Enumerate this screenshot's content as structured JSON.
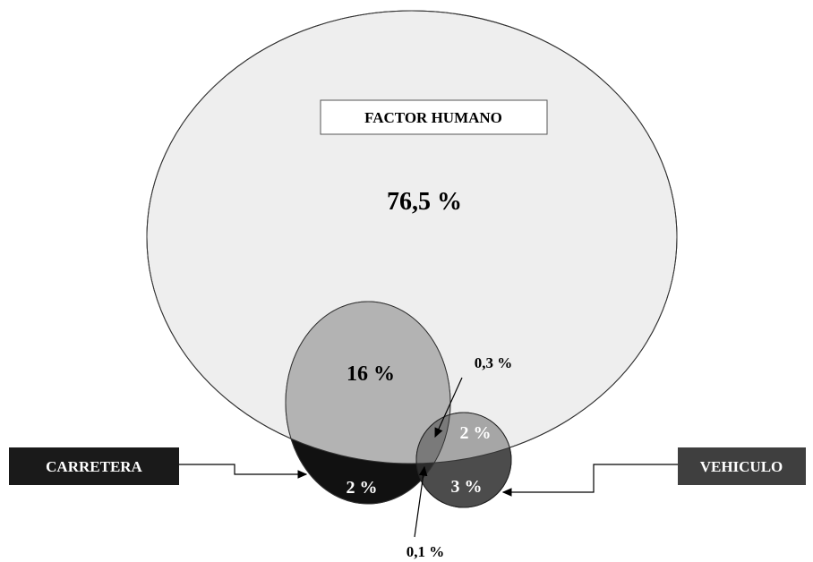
{
  "diagram": {
    "sets": {
      "human": {
        "label": "FACTOR HUMANO",
        "only_value": "76,5 %"
      },
      "road": {
        "label": "CARRETERA"
      },
      "vehicle": {
        "label": "VEHICULO"
      }
    },
    "regions": {
      "human_and_road": "16 %",
      "human_and_vehicle": "2 %",
      "road_only": "2 %",
      "vehicle_only": "3 %",
      "human_road_vehicle": "0,3 %",
      "road_and_vehicle": "0,1 %"
    },
    "colors": {
      "human_fill": "#eeeeee",
      "overlap_fill": "#b3b3b3",
      "road_only_fill": "#111111",
      "vehicle_only_fill": "#4c4c4c",
      "label_box_dark": "#1a1a1a",
      "label_box_vehicle": "#3f3f3f",
      "text_dark": "#000000",
      "text_light": "#ffffff"
    }
  }
}
